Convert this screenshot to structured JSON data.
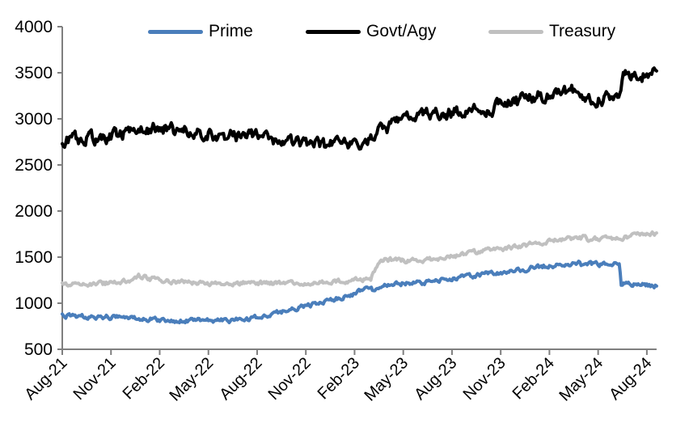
{
  "chart_data": {
    "type": "line",
    "legend_position": "top",
    "x_axis": {
      "tick_labels": [
        "Aug-21",
        "Nov-21",
        "Feb-22",
        "May-22",
        "Aug-22",
        "Nov-22",
        "Feb-23",
        "May-23",
        "Aug-23",
        "Nov-23",
        "Feb-24",
        "May-24",
        "Aug-24"
      ],
      "months_per_tick": 3,
      "range_months_from_aug_2021": [
        0,
        36.6
      ]
    },
    "y_axis": {
      "ticks": [
        500,
        1000,
        1500,
        2000,
        2500,
        3000,
        3500,
        4000
      ],
      "min": 500,
      "max": 4000,
      "gridlines": false
    },
    "series": [
      {
        "name": "Prime",
        "color": "#4A7EBB",
        "points_x_months_from_aug_2021": [
          [
            0,
            865
          ],
          [
            0.5,
            862
          ],
          [
            1,
            860
          ],
          [
            1.5,
            857
          ],
          [
            2,
            855
          ],
          [
            2.5,
            852
          ],
          [
            3,
            850
          ],
          [
            3.5,
            848
          ],
          [
            4,
            845
          ],
          [
            4.5,
            840
          ],
          [
            5,
            835
          ],
          [
            5.5,
            828
          ],
          [
            6,
            822
          ],
          [
            6.5,
            816
          ],
          [
            7,
            812
          ],
          [
            7.5,
            808
          ],
          [
            8,
            815
          ],
          [
            8.5,
            820
          ],
          [
            9,
            818
          ],
          [
            9.5,
            812
          ],
          [
            10,
            818
          ],
          [
            10.5,
            812
          ],
          [
            11,
            820
          ],
          [
            11.5,
            828
          ],
          [
            12,
            840
          ],
          [
            12.5,
            862
          ],
          [
            13,
            885
          ],
          [
            13.5,
            905
          ],
          [
            14,
            928
          ],
          [
            14.5,
            948
          ],
          [
            15,
            965
          ],
          [
            15.5,
            988
          ],
          [
            16,
            1012
          ],
          [
            16.3,
            1040
          ],
          [
            16.6,
            1036
          ],
          [
            17,
            1058
          ],
          [
            17.5,
            1082
          ],
          [
            18,
            1105
          ],
          [
            18.4,
            1138
          ],
          [
            18.7,
            1162
          ],
          [
            18.9,
            1182
          ],
          [
            19.1,
            1150
          ],
          [
            19.4,
            1158
          ],
          [
            19.7,
            1178
          ],
          [
            20,
            1198
          ],
          [
            20.5,
            1205
          ],
          [
            21,
            1215
          ],
          [
            21.4,
            1225
          ],
          [
            21.7,
            1215
          ],
          [
            22,
            1228
          ],
          [
            22.3,
            1218
          ],
          [
            22.7,
            1232
          ],
          [
            23,
            1248
          ],
          [
            23.5,
            1258
          ],
          [
            24,
            1270
          ],
          [
            24.5,
            1280
          ],
          [
            25,
            1290
          ],
          [
            25.5,
            1300
          ],
          [
            26,
            1315
          ],
          [
            26.5,
            1325
          ],
          [
            27,
            1335
          ],
          [
            27.5,
            1342
          ],
          [
            28,
            1352
          ],
          [
            28.5,
            1365
          ],
          [
            29,
            1390
          ],
          [
            29.5,
            1400
          ],
          [
            30,
            1405
          ],
          [
            30.5,
            1412
          ],
          [
            31,
            1420
          ],
          [
            31.5,
            1430
          ],
          [
            31.8,
            1435
          ],
          [
            32.1,
            1400
          ],
          [
            32.4,
            1420
          ],
          [
            33,
            1425
          ],
          [
            33.5,
            1420
          ],
          [
            34,
            1428
          ],
          [
            34.3,
            1432
          ],
          [
            34.42,
            1205
          ],
          [
            34.8,
            1208
          ],
          [
            35.2,
            1200
          ],
          [
            35.6,
            1205
          ],
          [
            36,
            1192
          ],
          [
            36.3,
            1183
          ],
          [
            36.6,
            1186
          ]
        ]
      },
      {
        "name": "Govt/Agy",
        "color": "#000000",
        "points_x_months_from_aug_2021": [
          [
            0,
            2770
          ],
          [
            0.5,
            2778
          ],
          [
            1,
            2770
          ],
          [
            1.5,
            2782
          ],
          [
            2,
            2790
          ],
          [
            2.5,
            2800
          ],
          [
            3,
            2815
          ],
          [
            3.5,
            2830
          ],
          [
            4,
            2860
          ],
          [
            4.4,
            2900
          ],
          [
            4.7,
            2940
          ],
          [
            5,
            2920
          ],
          [
            5.3,
            2890
          ],
          [
            5.6,
            2910
          ],
          [
            6,
            2890
          ],
          [
            6.5,
            2900
          ],
          [
            7,
            2870
          ],
          [
            7.4,
            2890
          ],
          [
            7.8,
            2880
          ],
          [
            8.1,
            2800
          ],
          [
            8.4,
            2830
          ],
          [
            8.7,
            2820
          ],
          [
            9,
            2830
          ],
          [
            9.5,
            2810
          ],
          [
            10,
            2800
          ],
          [
            10.5,
            2815
          ],
          [
            11,
            2805
          ],
          [
            11.5,
            2815
          ],
          [
            12,
            2800
          ],
          [
            12.5,
            2790
          ],
          [
            13,
            2780
          ],
          [
            13.5,
            2775
          ],
          [
            14,
            2765
          ],
          [
            14.5,
            2755
          ],
          [
            15,
            2745
          ],
          [
            15.5,
            2735
          ],
          [
            16,
            2730
          ],
          [
            16.3,
            2700
          ],
          [
            16.6,
            2740
          ],
          [
            17,
            2720
          ],
          [
            17.3,
            2690
          ],
          [
            17.6,
            2730
          ],
          [
            18,
            2680
          ],
          [
            18.3,
            2660
          ],
          [
            18.6,
            2685
          ],
          [
            19,
            2790
          ],
          [
            19.3,
            2845
          ],
          [
            19.6,
            2875
          ],
          [
            20,
            2910
          ],
          [
            20.3,
            2950
          ],
          [
            20.6,
            2970
          ],
          [
            21,
            3020
          ],
          [
            21.3,
            3040
          ],
          [
            21.6,
            3030
          ],
          [
            22,
            3040
          ],
          [
            22.5,
            3050
          ],
          [
            23,
            3050
          ],
          [
            23.3,
            3030
          ],
          [
            23.6,
            3050
          ],
          [
            24,
            3070
          ],
          [
            24.5,
            3080
          ],
          [
            25,
            3100
          ],
          [
            25.5,
            3120
          ],
          [
            25.8,
            3130
          ],
          [
            26.1,
            3030
          ],
          [
            26.4,
            3100
          ],
          [
            26.7,
            3130
          ],
          [
            27,
            3160
          ],
          [
            27.4,
            3200
          ],
          [
            27.8,
            3250
          ],
          [
            28.1,
            3180
          ],
          [
            28.4,
            3220
          ],
          [
            28.7,
            3240
          ],
          [
            29,
            3230
          ],
          [
            29.3,
            3260
          ],
          [
            29.6,
            3240
          ],
          [
            30,
            3250
          ],
          [
            30.4,
            3280
          ],
          [
            30.7,
            3300
          ],
          [
            31,
            3310
          ],
          [
            31.3,
            3290
          ],
          [
            31.6,
            3320
          ],
          [
            31.9,
            3280
          ],
          [
            32.2,
            3190
          ],
          [
            32.5,
            3230
          ],
          [
            32.8,
            3190
          ],
          [
            33.1,
            3240
          ],
          [
            33.5,
            3230
          ],
          [
            34,
            3240
          ],
          [
            34.4,
            3255
          ],
          [
            34.55,
            3460
          ],
          [
            34.8,
            3470
          ],
          [
            35.1,
            3480
          ],
          [
            35.4,
            3460
          ],
          [
            35.7,
            3470
          ],
          [
            36,
            3480
          ],
          [
            36.3,
            3495
          ],
          [
            36.6,
            3520
          ]
        ]
      },
      {
        "name": "Treasury",
        "color": "#C0C0C0",
        "points_x_months_from_aug_2021": [
          [
            0,
            1205
          ],
          [
            0.5,
            1202
          ],
          [
            1,
            1200
          ],
          [
            1.5,
            1203
          ],
          [
            2,
            1208
          ],
          [
            2.5,
            1212
          ],
          [
            3,
            1220
          ],
          [
            3.5,
            1230
          ],
          [
            4,
            1242
          ],
          [
            4.4,
            1268
          ],
          [
            4.7,
            1295
          ],
          [
            5,
            1282
          ],
          [
            5.4,
            1265
          ],
          [
            6,
            1252
          ],
          [
            6.5,
            1242
          ],
          [
            7,
            1235
          ],
          [
            7.5,
            1228
          ],
          [
            8,
            1222
          ],
          [
            8.5,
            1218
          ],
          [
            9,
            1214
          ],
          [
            9.5,
            1212
          ],
          [
            10,
            1212
          ],
          [
            10.5,
            1216
          ],
          [
            11,
            1220
          ],
          [
            11.5,
            1222
          ],
          [
            12,
            1222
          ],
          [
            12.5,
            1220
          ],
          [
            13,
            1218
          ],
          [
            13.5,
            1215
          ],
          [
            14,
            1214
          ],
          [
            14.5,
            1218
          ],
          [
            15,
            1222
          ],
          [
            15.5,
            1226
          ],
          [
            16,
            1230
          ],
          [
            16.5,
            1235
          ],
          [
            17,
            1240
          ],
          [
            17.5,
            1244
          ],
          [
            18,
            1248
          ],
          [
            18.5,
            1252
          ],
          [
            19,
            1258
          ],
          [
            19.45,
            1448
          ],
          [
            19.7,
            1472
          ],
          [
            20,
            1480
          ],
          [
            20.4,
            1468
          ],
          [
            20.8,
            1458
          ],
          [
            21,
            1462
          ],
          [
            21.5,
            1466
          ],
          [
            22,
            1470
          ],
          [
            22.4,
            1462
          ],
          [
            22.7,
            1472
          ],
          [
            23,
            1480
          ],
          [
            23.5,
            1492
          ],
          [
            24,
            1505
          ],
          [
            24.5,
            1518
          ],
          [
            25,
            1535
          ],
          [
            25.5,
            1552
          ],
          [
            26,
            1568
          ],
          [
            26.5,
            1580
          ],
          [
            27,
            1592
          ],
          [
            27.5,
            1600
          ],
          [
            28,
            1615
          ],
          [
            28.5,
            1628
          ],
          [
            29,
            1642
          ],
          [
            29.5,
            1655
          ],
          [
            30,
            1668
          ],
          [
            30.4,
            1685
          ],
          [
            30.8,
            1696
          ],
          [
            31.2,
            1702
          ],
          [
            31.6,
            1698
          ],
          [
            32,
            1710
          ],
          [
            32.2,
            1715
          ],
          [
            32.4,
            1682
          ],
          [
            32.8,
            1692
          ],
          [
            33.2,
            1700
          ],
          [
            33.6,
            1706
          ],
          [
            34,
            1710
          ],
          [
            34.5,
            1716
          ],
          [
            35,
            1726
          ],
          [
            35.5,
            1740
          ],
          [
            36,
            1750
          ],
          [
            36.6,
            1762
          ]
        ]
      }
    ]
  }
}
